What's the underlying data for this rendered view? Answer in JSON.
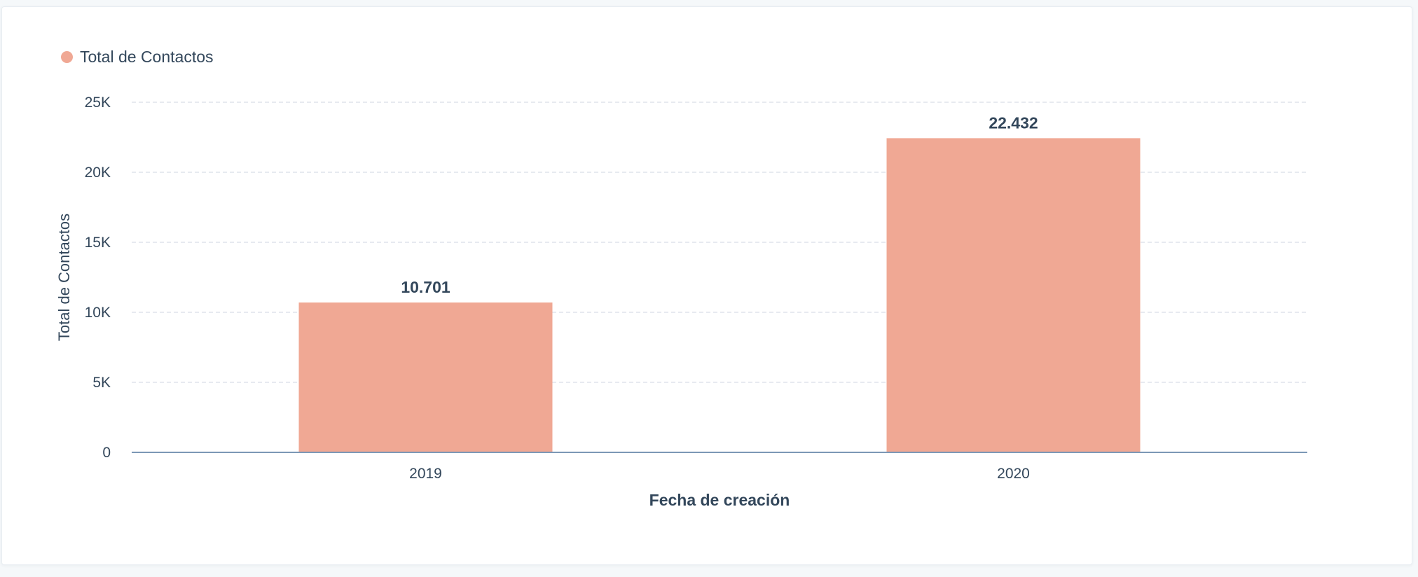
{
  "legend": {
    "label": "Total de Contactos",
    "color": "#f0a894"
  },
  "chart_data": {
    "type": "bar",
    "categories": [
      "2019",
      "2020"
    ],
    "series": [
      {
        "name": "Total de Contactos",
        "values": [
          10701,
          22432
        ],
        "data_labels": [
          "10.701",
          "22.432"
        ],
        "color": "#f0a894"
      }
    ],
    "xlabel": "Fecha de creación",
    "ylabel": "Total de Contactos",
    "ylim": [
      0,
      25000
    ],
    "yticks": [
      0,
      5000,
      10000,
      15000,
      20000,
      25000
    ],
    "ytick_labels": [
      "0",
      "5K",
      "10K",
      "15K",
      "20K",
      "25K"
    ],
    "grid": true,
    "legend_position": "top-left"
  }
}
